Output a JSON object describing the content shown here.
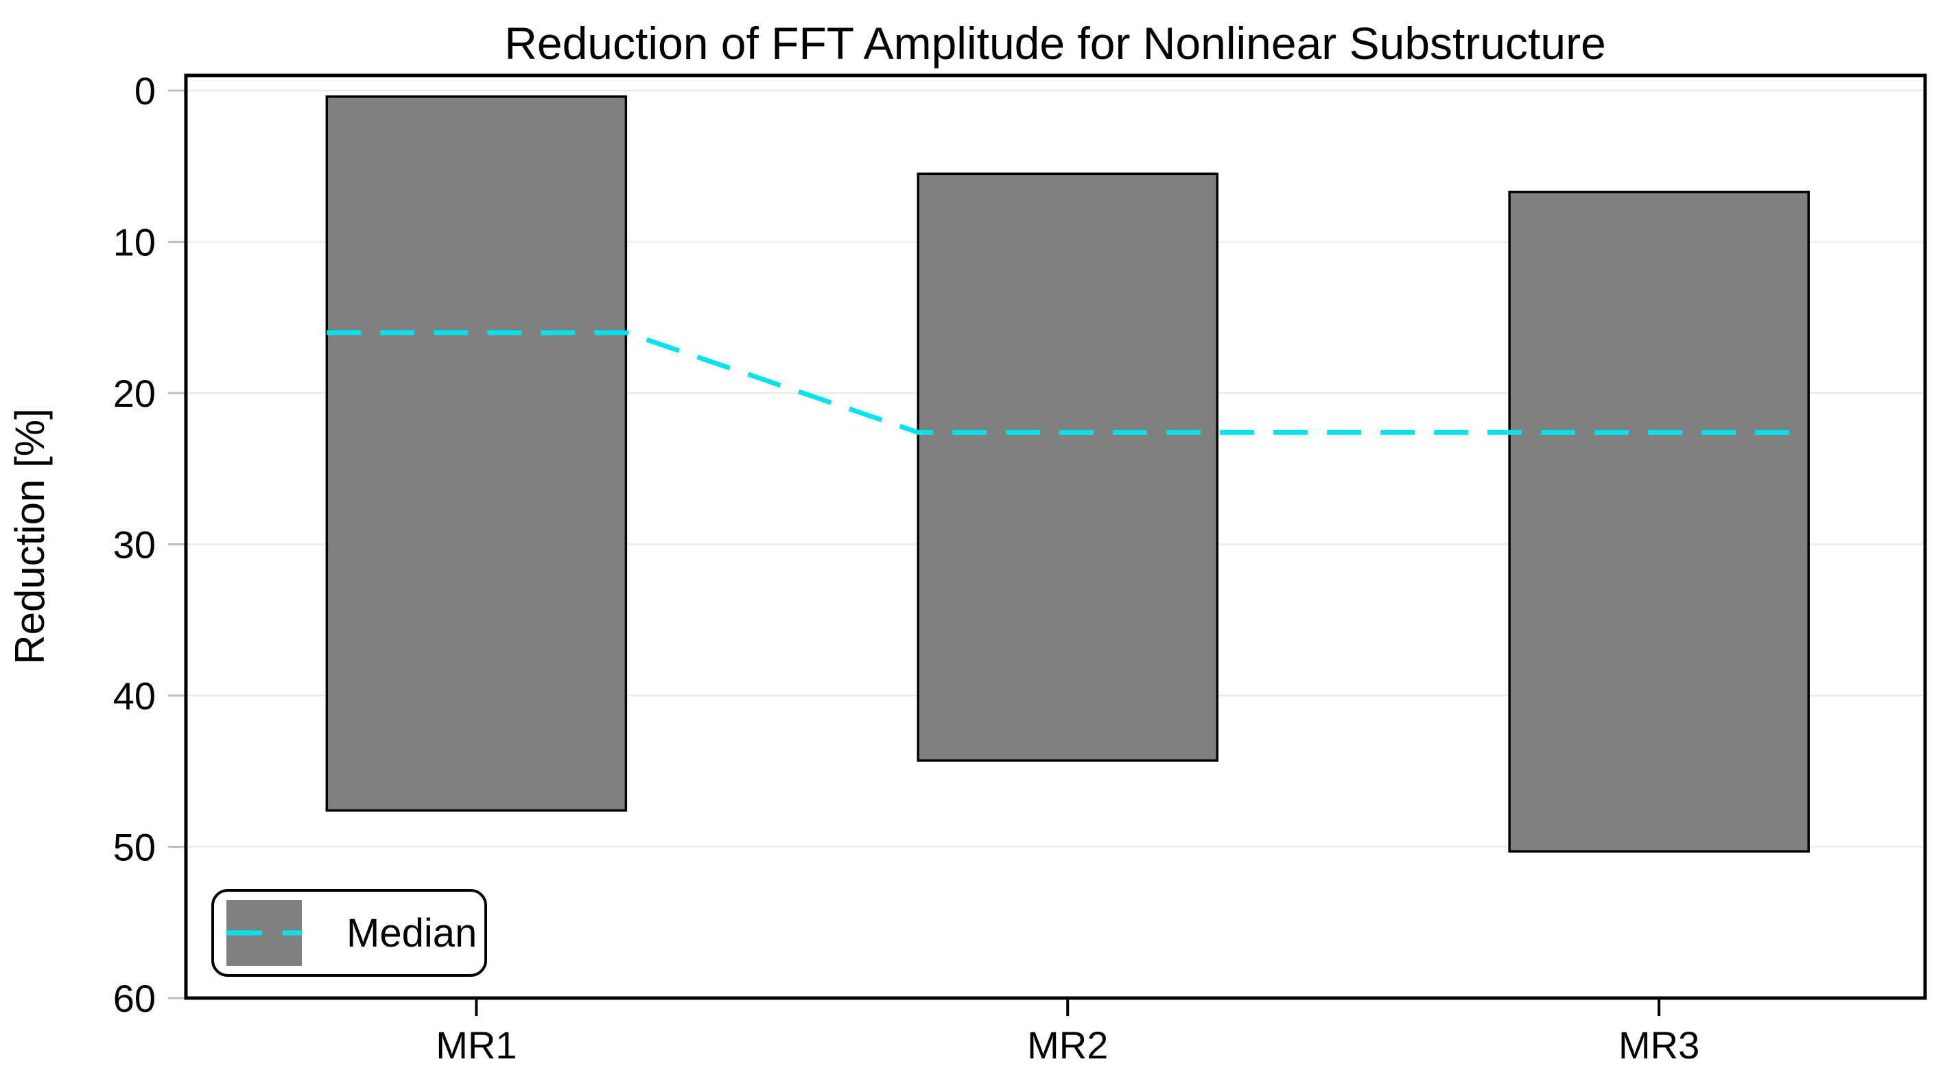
{
  "chart_data": {
    "type": "bar",
    "subtype": "floating-range-bars-with-median-line",
    "title": "Reduction of FFT Amplitude for Nonlinear Substructure",
    "xlabel": "",
    "ylabel": "Reduction [%]",
    "categories": [
      "MR1",
      "MR2",
      "MR3"
    ],
    "bars": [
      {
        "category": "MR1",
        "top": 0.4,
        "bottom": 47.6,
        "median": 16.0
      },
      {
        "category": "MR2",
        "top": 5.5,
        "bottom": 44.3,
        "median": 22.6
      },
      {
        "category": "MR3",
        "top": 6.7,
        "bottom": 50.3,
        "median": 22.6
      }
    ],
    "y_axis": {
      "min": -1,
      "max": 60,
      "ticks": [
        0,
        10,
        20,
        30,
        40,
        50,
        60
      ],
      "direction": "increasing-downward"
    },
    "grid": "horizontal-only",
    "legend": {
      "label": "Median",
      "position": "bottom-left"
    },
    "colors": {
      "bar_fill": "#808080",
      "bar_border": "#000000",
      "median_line": "#00e3ed",
      "gridline": "#ececec",
      "y_tick_mark": "#bdbdbd",
      "x_tick_mark": "#000000",
      "axis_border": "#000000",
      "background": "#ffffff"
    },
    "median_line_style": "dashed"
  }
}
